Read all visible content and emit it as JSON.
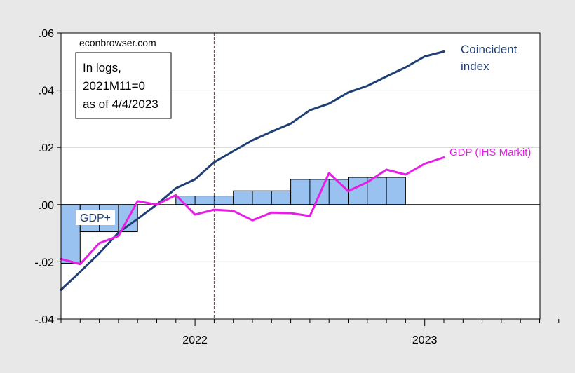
{
  "chart_data": {
    "type": "bar+line",
    "watermark": "econbrowser.com",
    "note_lines": [
      "In logs,",
      "2021M11=0",
      "as of 4/4/2023"
    ],
    "ylim": [
      -0.04,
      0.06
    ],
    "y_ticks": [
      -0.04,
      -0.02,
      0.0,
      0.02,
      0.04,
      0.06
    ],
    "y_tick_labels": [
      "-.04",
      "-.02",
      ".00",
      ".02",
      ".04",
      ".06"
    ],
    "x_range": [
      "2021-06",
      "2023-09"
    ],
    "x_year_labels": [
      {
        "label": "2022",
        "month": "2022-01"
      },
      {
        "label": "2023",
        "month": "2023-01"
      }
    ],
    "vertical_marker": {
      "month": "2022-02",
      "color": "#b22222"
    },
    "gdp_plus": {
      "name": "GDP+",
      "color": "#99c2f0",
      "bars": [
        {
          "start": "2021-06",
          "end": "2021-07",
          "value": -0.0205
        },
        {
          "start": "2021-07",
          "end": "2021-10",
          "value": -0.0095
        },
        {
          "start": "2021-12",
          "end": "2022-03",
          "value": 0.003
        },
        {
          "start": "2022-03",
          "end": "2022-06",
          "value": 0.0048
        },
        {
          "start": "2022-06",
          "end": "2022-09",
          "value": 0.0088
        },
        {
          "start": "2022-09",
          "end": "2022-12",
          "value": 0.0095
        }
      ]
    },
    "series": [
      {
        "name": "Coincident index",
        "label_lines": [
          "Coincident",
          "index"
        ],
        "color": "#1f3f74",
        "points": [
          [
            "2021-06",
            -0.0298
          ],
          [
            "2021-07",
            -0.0235
          ],
          [
            "2021-08",
            -0.017
          ],
          [
            "2021-09",
            -0.0098
          ],
          [
            "2021-10",
            -0.005
          ],
          [
            "2021-11",
            0.0
          ],
          [
            "2021-12",
            0.0057
          ],
          [
            "2022-01",
            0.0088
          ],
          [
            "2022-02",
            0.0148
          ],
          [
            "2022-03",
            0.0187
          ],
          [
            "2022-04",
            0.0225
          ],
          [
            "2022-05",
            0.0255
          ],
          [
            "2022-06",
            0.0283
          ],
          [
            "2022-07",
            0.033
          ],
          [
            "2022-08",
            0.0353
          ],
          [
            "2022-09",
            0.0392
          ],
          [
            "2022-10",
            0.0415
          ],
          [
            "2022-11",
            0.0448
          ],
          [
            "2022-12",
            0.048
          ],
          [
            "2023-01",
            0.0518
          ],
          [
            "2023-02",
            0.0535
          ]
        ]
      },
      {
        "name": "GDP (IHS Markit)",
        "color": "#e61ee6",
        "points": [
          [
            "2021-06",
            -0.019
          ],
          [
            "2021-07",
            -0.0208
          ],
          [
            "2021-08",
            -0.0135
          ],
          [
            "2021-09",
            -0.011
          ],
          [
            "2021-10",
            0.0012
          ],
          [
            "2021-11",
            0.0
          ],
          [
            "2021-12",
            0.0033
          ],
          [
            "2022-01",
            -0.0035
          ],
          [
            "2022-02",
            -0.0018
          ],
          [
            "2022-03",
            -0.0022
          ],
          [
            "2022-04",
            -0.0055
          ],
          [
            "2022-05",
            -0.0028
          ],
          [
            "2022-06",
            -0.003
          ],
          [
            "2022-07",
            -0.004
          ],
          [
            "2022-08",
            0.011
          ],
          [
            "2022-09",
            0.0047
          ],
          [
            "2022-10",
            0.0078
          ],
          [
            "2022-11",
            0.0122
          ],
          [
            "2022-12",
            0.0105
          ],
          [
            "2023-01",
            0.0143
          ],
          [
            "2023-02",
            0.0165
          ]
        ]
      }
    ],
    "grid": true
  }
}
